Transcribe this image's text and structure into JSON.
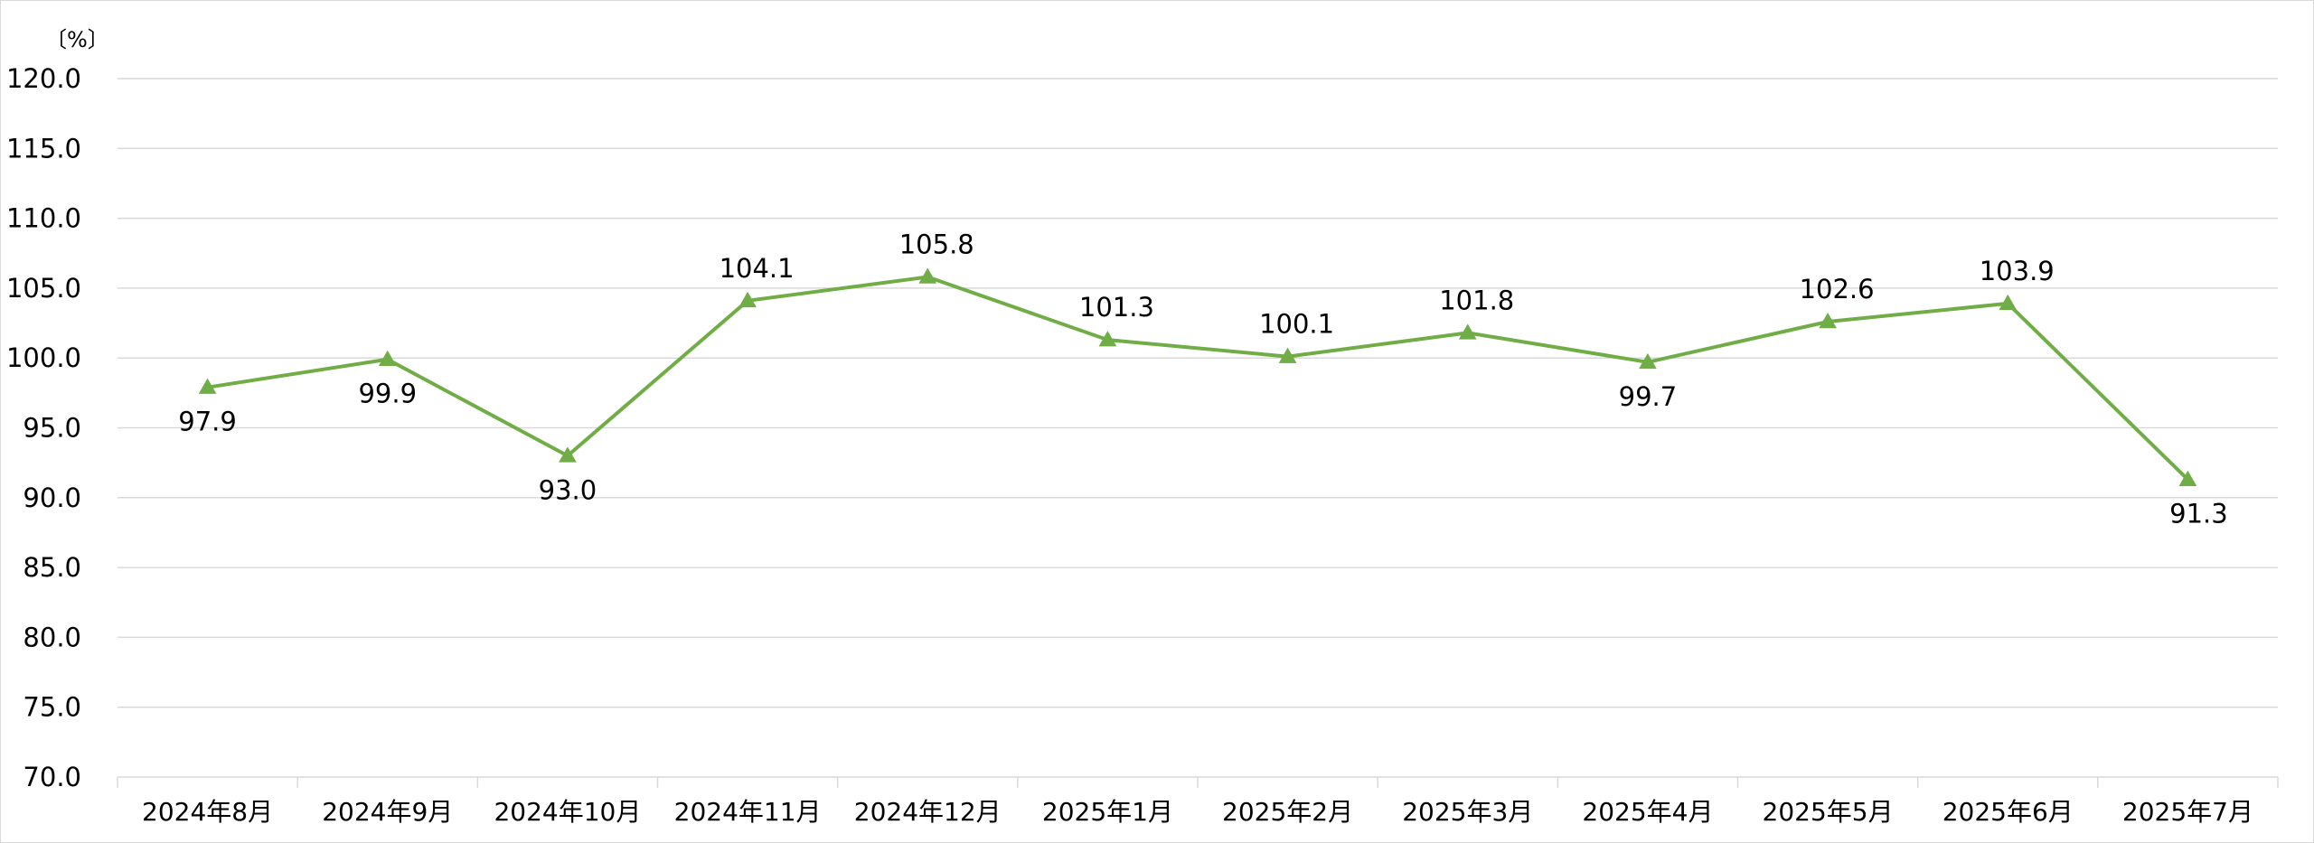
{
  "chart_data": {
    "type": "line",
    "title": "",
    "xlabel": "",
    "ylabel": "",
    "unit_label": "〔%〕",
    "categories": [
      "2024年8月",
      "2024年9月",
      "2024年10月",
      "2024年11月",
      "2024年12月",
      "2025年1月",
      "2025年2月",
      "2025年3月",
      "2025年4月",
      "2025年5月",
      "2025年6月",
      "2025年7月"
    ],
    "series": [
      {
        "values": [
          97.9,
          99.9,
          93.0,
          104.1,
          105.8,
          101.3,
          100.1,
          101.8,
          99.7,
          102.6,
          103.9,
          91.3
        ],
        "labels": [
          "97.9",
          "99.9",
          "93.0",
          "104.1",
          "105.8",
          "101.3",
          "100.1",
          "101.8",
          "99.7",
          "102.6",
          "103.9",
          "91.3"
        ],
        "label_position": [
          "below",
          "below",
          "below",
          "above",
          "above",
          "above",
          "above",
          "above",
          "below",
          "above",
          "above",
          "below"
        ],
        "color": "#70AD47",
        "marker": "triangle"
      }
    ],
    "ylim": [
      70.0,
      120.0
    ],
    "yticks": [
      "70.0",
      "75.0",
      "80.0",
      "85.0",
      "90.0",
      "95.0",
      "100.0",
      "105.0",
      "110.0",
      "115.0",
      "120.0"
    ],
    "grid": true,
    "gridline_color": "#d9d9d9",
    "legend": "none"
  }
}
